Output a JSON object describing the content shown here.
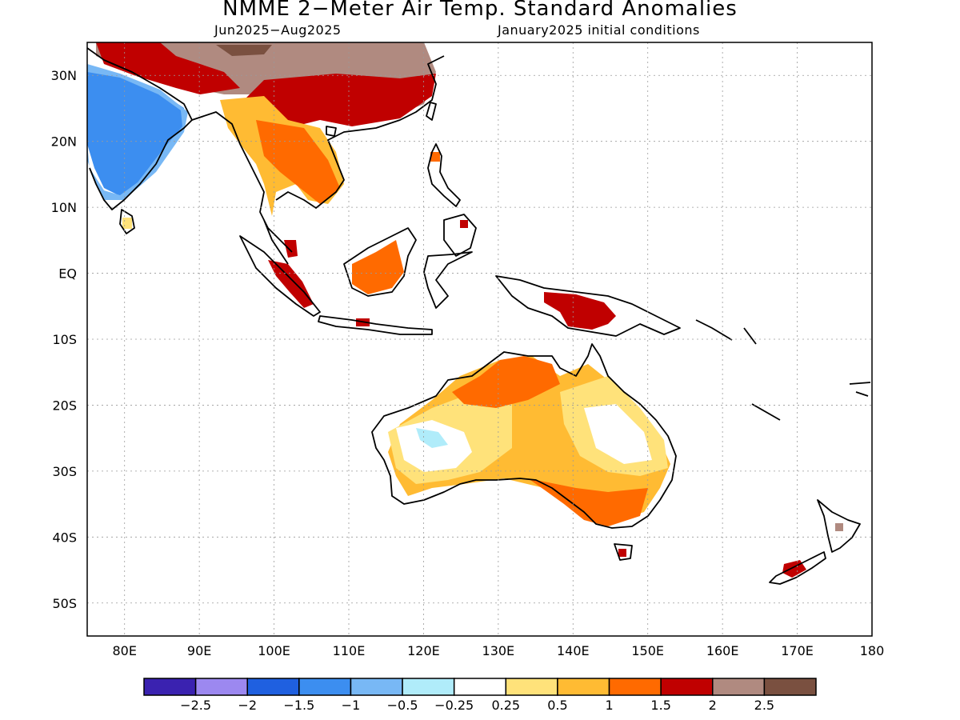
{
  "title": "NMME 2−Meter Air Temp. Standard Anomalies",
  "subtitle_left": "Jun2025−Aug2025",
  "subtitle_right": "January2025 initial conditions",
  "axes": {
    "lon_labels": [
      "80E",
      "90E",
      "100E",
      "110E",
      "120E",
      "130E",
      "140E",
      "150E",
      "160E",
      "170E",
      "180"
    ],
    "lat_labels": [
      "30N",
      "20N",
      "10N",
      "EQ",
      "10S",
      "20S",
      "30S",
      "40S",
      "50S"
    ],
    "lon_range": [
      75,
      180
    ],
    "lat_range": [
      -55,
      35
    ],
    "grid": "dotted"
  },
  "colorbar": {
    "colors": [
      "#3a22b0",
      "#9c88f0",
      "#1f60e0",
      "#3c8ef0",
      "#78b8f5",
      "#b0ecfa",
      "#ffffff",
      "#ffe27a",
      "#ffbb33",
      "#ff6a00",
      "#c00000",
      "#b08a80",
      "#7a5040"
    ],
    "labels": [
      "−2.5",
      "−2",
      "−1.5",
      "−1",
      "−0.5",
      "−0.25",
      "0.25",
      "0.5",
      "1",
      "1.5",
      "2",
      "2.5"
    ]
  },
  "regions": [
    {
      "name": "india",
      "category": "-1"
    },
    {
      "name": "india-north-edge",
      "category": "-0.5"
    },
    {
      "name": "tibet",
      "category": "2.5"
    },
    {
      "name": "china-south",
      "category": "2"
    },
    {
      "name": "indochina",
      "category": "1"
    },
    {
      "name": "borneo",
      "category": "1.5"
    },
    {
      "name": "new-guinea",
      "category": "2"
    },
    {
      "name": "australia-north",
      "category": "1.5"
    },
    {
      "name": "australia-central",
      "category": "1"
    },
    {
      "name": "australia-west",
      "category": "0.5"
    },
    {
      "name": "australia-southeast",
      "category": "1.5"
    },
    {
      "name": "new-zealand-south",
      "category": "2"
    }
  ]
}
